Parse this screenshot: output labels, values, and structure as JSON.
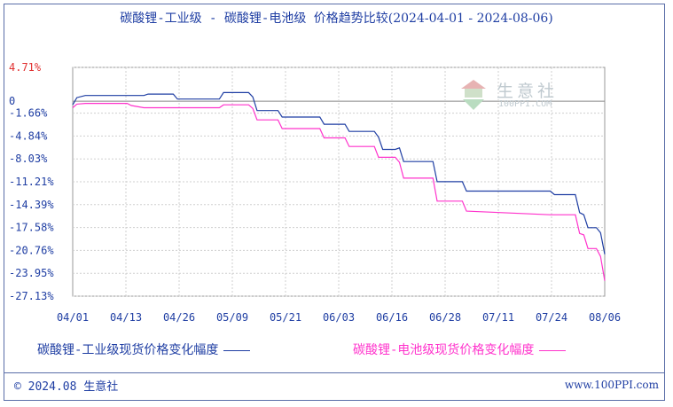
{
  "chart_data": {
    "type": "line",
    "title": "碳酸锂-工业级 - 碳酸锂-电池级 价格趋势比较",
    "title_range": "(2024-04-01 - 2024-08-06)",
    "x_ticks": [
      "04/01",
      "04/13",
      "04/26",
      "05/09",
      "05/21",
      "06/03",
      "06/16",
      "06/28",
      "07/11",
      "07/24",
      "08/06"
    ],
    "y_ticks": [
      "4.71%",
      "0",
      "-1.66%",
      "-4.84%",
      "-8.03%",
      "-11.21%",
      "-14.39%",
      "-17.58%",
      "-20.76%",
      "-23.95%",
      "-27.13%"
    ],
    "y_tick_values": [
      4.71,
      0,
      -1.66,
      -4.84,
      -8.03,
      -11.21,
      -14.39,
      -17.58,
      -20.76,
      -23.95,
      -27.13
    ],
    "ylim": [
      -27.13,
      4.71
    ],
    "x_start": "2024-04-01",
    "x_end": "2024-08-06",
    "grid": true,
    "series": [
      {
        "name": "碳酸锂-工业级现货价格变化幅度",
        "color": "#1f3ea3",
        "points": [
          [
            "2024-04-01",
            -0.5
          ],
          [
            "2024-04-02",
            0.5
          ],
          [
            "2024-04-04",
            0.8
          ],
          [
            "2024-04-18",
            0.8
          ],
          [
            "2024-04-19",
            1.0
          ],
          [
            "2024-04-25",
            1.0
          ],
          [
            "2024-04-26",
            0.3
          ],
          [
            "2024-05-06",
            0.3
          ],
          [
            "2024-05-07",
            1.2
          ],
          [
            "2024-05-13",
            1.2
          ],
          [
            "2024-05-14",
            0.6
          ],
          [
            "2024-05-15",
            -1.3
          ],
          [
            "2024-05-20",
            -1.3
          ],
          [
            "2024-05-21",
            -2.2
          ],
          [
            "2024-05-30",
            -2.2
          ],
          [
            "2024-05-31",
            -3.2
          ],
          [
            "2024-06-05",
            -3.2
          ],
          [
            "2024-06-06",
            -4.2
          ],
          [
            "2024-06-12",
            -4.2
          ],
          [
            "2024-06-13",
            -5.0
          ],
          [
            "2024-06-14",
            -6.7
          ],
          [
            "2024-06-17",
            -6.7
          ],
          [
            "2024-06-18",
            -6.5
          ],
          [
            "2024-06-19",
            -8.4
          ],
          [
            "2024-06-26",
            -8.4
          ],
          [
            "2024-06-27",
            -11.2
          ],
          [
            "2024-07-03",
            -11.2
          ],
          [
            "2024-07-04",
            -12.5
          ],
          [
            "2024-07-24",
            -12.5
          ],
          [
            "2024-07-25",
            -13.0
          ],
          [
            "2024-07-30",
            -13.0
          ],
          [
            "2024-07-31",
            -15.5
          ],
          [
            "2024-08-01",
            -15.8
          ],
          [
            "2024-08-02",
            -17.6
          ],
          [
            "2024-08-04",
            -17.6
          ],
          [
            "2024-08-05",
            -18.3
          ],
          [
            "2024-08-06",
            -21.3
          ]
        ]
      },
      {
        "name": "碳酸锂-电池级现货价格变化幅度",
        "color": "#ff33cc",
        "points": [
          [
            "2024-04-01",
            -0.9
          ],
          [
            "2024-04-02",
            -0.4
          ],
          [
            "2024-04-04",
            -0.3
          ],
          [
            "2024-04-14",
            -0.3
          ],
          [
            "2024-04-15",
            -0.6
          ],
          [
            "2024-04-18",
            -0.9
          ],
          [
            "2024-04-29",
            -0.9
          ],
          [
            "2024-05-06",
            -0.9
          ],
          [
            "2024-05-07",
            -0.5
          ],
          [
            "2024-05-13",
            -0.5
          ],
          [
            "2024-05-14",
            -1.0
          ],
          [
            "2024-05-15",
            -2.6
          ],
          [
            "2024-05-20",
            -2.6
          ],
          [
            "2024-05-21",
            -3.8
          ],
          [
            "2024-05-30",
            -3.8
          ],
          [
            "2024-05-31",
            -5.1
          ],
          [
            "2024-06-05",
            -5.1
          ],
          [
            "2024-06-06",
            -6.3
          ],
          [
            "2024-06-12",
            -6.3
          ],
          [
            "2024-06-13",
            -7.8
          ],
          [
            "2024-06-17",
            -7.8
          ],
          [
            "2024-06-18",
            -8.5
          ],
          [
            "2024-06-19",
            -10.7
          ],
          [
            "2024-06-26",
            -10.7
          ],
          [
            "2024-06-27",
            -13.9
          ],
          [
            "2024-07-03",
            -13.9
          ],
          [
            "2024-07-04",
            -15.3
          ],
          [
            "2024-07-24",
            -15.8
          ],
          [
            "2024-07-30",
            -15.8
          ],
          [
            "2024-07-31",
            -18.4
          ],
          [
            "2024-08-01",
            -18.6
          ],
          [
            "2024-08-02",
            -20.5
          ],
          [
            "2024-08-04",
            -20.5
          ],
          [
            "2024-08-05",
            -21.6
          ],
          [
            "2024-08-06",
            -25.0
          ]
        ]
      }
    ]
  },
  "watermark": {
    "cn": "生意社",
    "en": "100PPI.COM"
  },
  "legend": {
    "series1": "碳酸锂-工业级现货价格变化幅度",
    "series2": "碳酸锂-电池级现货价格变化幅度"
  },
  "footer": {
    "copyright": "© 2024.08 生意社",
    "url": "www.100PPI.com"
  }
}
